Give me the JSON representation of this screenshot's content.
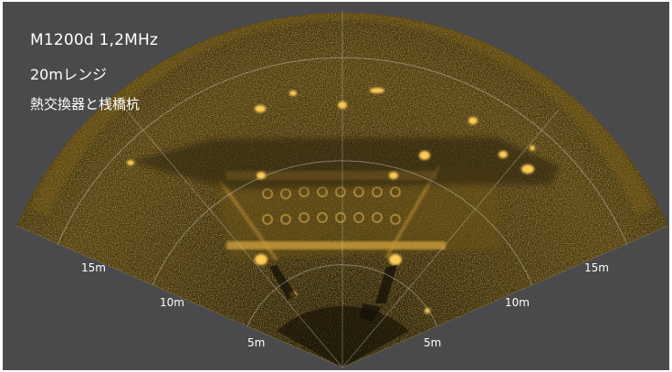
{
  "caption": {
    "model": "M1200d 1,2MHz",
    "range": "20mレンジ",
    "subject": "熱交換器と桟橋杭"
  },
  "range_rings": [
    {
      "label": "5m"
    },
    {
      "label": "10m"
    },
    {
      "label": "15m"
    }
  ],
  "colors": {
    "background": "#4a4a4c",
    "sonar_base": "#2a2008",
    "echo": "#f2b640",
    "grid": "#cfcfcf"
  }
}
